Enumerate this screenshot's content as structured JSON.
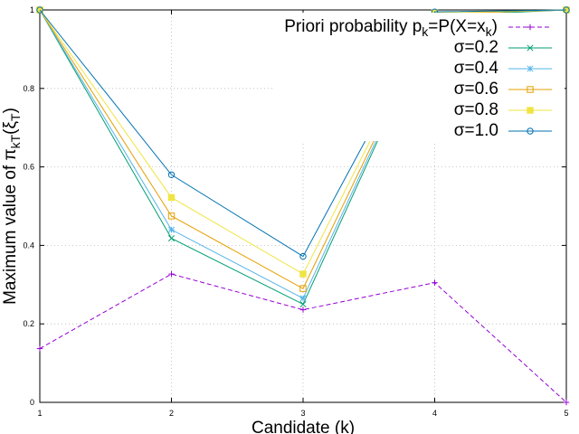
{
  "chart_data": {
    "type": "line",
    "xlabel": "Candidate (k)",
    "ylabel_main": "Maximum value of π",
    "ylabel_sub1": "kT",
    "ylabel_mid": "(ξ",
    "ylabel_sub2": "T",
    "ylabel_end": ")",
    "x": [
      1,
      2,
      3,
      4,
      5
    ],
    "xlim": [
      1,
      5
    ],
    "ylim": [
      0,
      1
    ],
    "xticks": [
      "1",
      "2",
      "3",
      "4",
      "5"
    ],
    "yticks": [
      {
        "value": 0,
        "label": "0"
      },
      {
        "value": 0.2,
        "label": "0.2"
      },
      {
        "value": 0.4,
        "label": "0.4"
      },
      {
        "value": 0.6,
        "label": "0.6"
      },
      {
        "value": 0.8,
        "label": "0.8"
      },
      {
        "value": 1,
        "label": "1"
      }
    ],
    "grid": true,
    "legend_position": "top-right",
    "series": [
      {
        "name": "Priori probability p",
        "legend_sub1": "k",
        "legend_mid": "=P(X=x",
        "legend_sub2": "k",
        "legend_end": ")",
        "values": [
          0.137,
          0.327,
          0.236,
          0.305,
          0.0
        ],
        "color": "#9400d3",
        "marker": "plus",
        "dashed": true
      },
      {
        "name": "σ=0.2",
        "values": [
          1.0,
          0.418,
          0.25,
          0.985,
          1.0
        ],
        "color": "#009e73",
        "marker": "x",
        "dashed": false
      },
      {
        "name": "σ=0.4",
        "values": [
          1.0,
          0.44,
          0.265,
          0.99,
          1.0
        ],
        "color": "#56b4e9",
        "marker": "star",
        "dashed": false
      },
      {
        "name": "σ=0.6",
        "values": [
          1.0,
          0.475,
          0.29,
          0.99,
          1.0
        ],
        "color": "#e69f00",
        "marker": "square",
        "dashed": false
      },
      {
        "name": "σ=0.8",
        "values": [
          1.0,
          0.522,
          0.327,
          0.993,
          1.0
        ],
        "color": "#f0e442",
        "marker": "filled-square",
        "dashed": false
      },
      {
        "name": "σ=1.0",
        "values": [
          1.0,
          0.58,
          0.372,
          0.995,
          1.0
        ],
        "color": "#0072b2",
        "marker": "circle",
        "dashed": false
      }
    ]
  }
}
